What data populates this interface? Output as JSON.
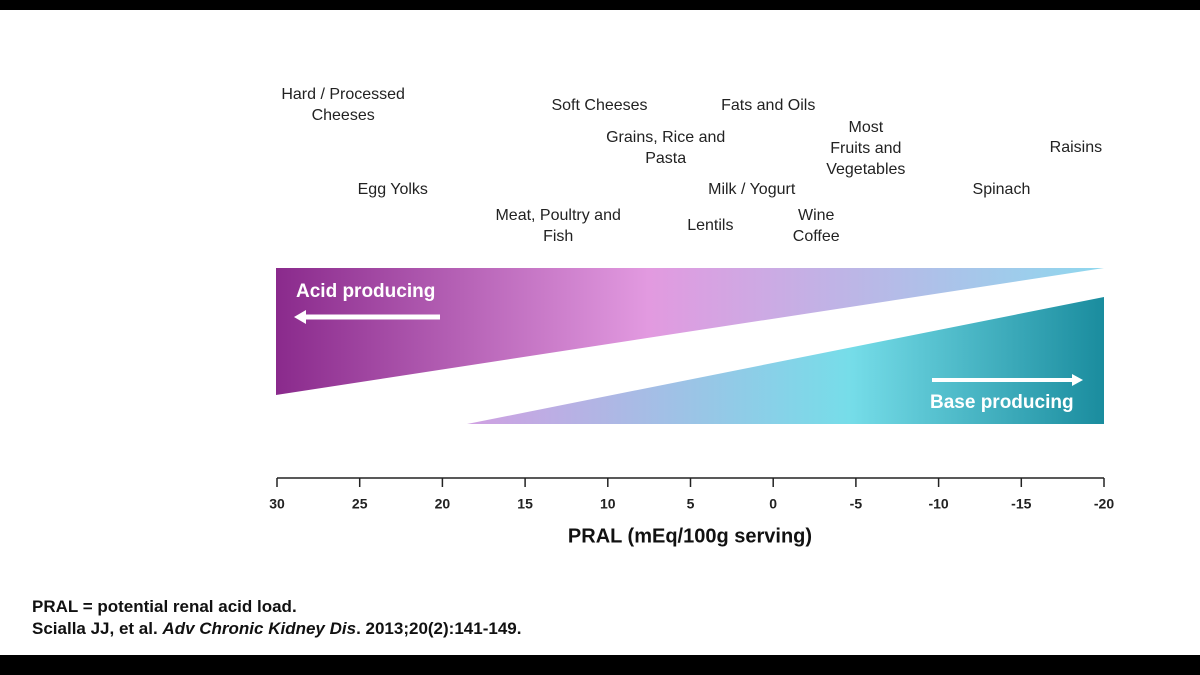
{
  "chart_data": {
    "type": "scale",
    "xlabel": "PRAL (mEq/100g serving)",
    "xlim": [
      30,
      -20
    ],
    "xticks": [
      30,
      25,
      20,
      15,
      10,
      5,
      0,
      -5,
      -10,
      -15,
      -20
    ],
    "acid_label": "Acid producing",
    "base_label": "Base producing",
    "items": [
      {
        "label": [
          "Hard / Processed",
          "Cheeses"
        ],
        "x": 26
      },
      {
        "label": [
          "Egg Yolks"
        ],
        "x": 23
      },
      {
        "label": [
          "Soft Cheeses"
        ],
        "x": 10.5
      },
      {
        "label": [
          "Grains, Rice and",
          "Pasta"
        ],
        "x": 6.5
      },
      {
        "label": [
          "Meat,  Poultry and",
          "Fish"
        ],
        "x": 13
      },
      {
        "label": [
          "Fats and Oils"
        ],
        "x": 0.3
      },
      {
        "label": [
          "Milk  / Yogurt"
        ],
        "x": 1.3
      },
      {
        "label": [
          "Lentils"
        ],
        "x": 3.8
      },
      {
        "label": [
          "Wine",
          "Coffee"
        ],
        "x": -2.6
      },
      {
        "label": [
          "Most",
          "Fruits and",
          "Vegetables"
        ],
        "x": -5.6
      },
      {
        "label": [
          "Spinach"
        ],
        "x": -13.8
      },
      {
        "label": [
          "Raisins"
        ],
        "x": -18.3
      }
    ]
  },
  "footnote": {
    "definition": "PRAL = potential renal acid load.",
    "citation": [
      "Scialla JJ, et al. ",
      "Adv Chronic Kidney Dis",
      ". 2013;20(2):141-149."
    ]
  }
}
